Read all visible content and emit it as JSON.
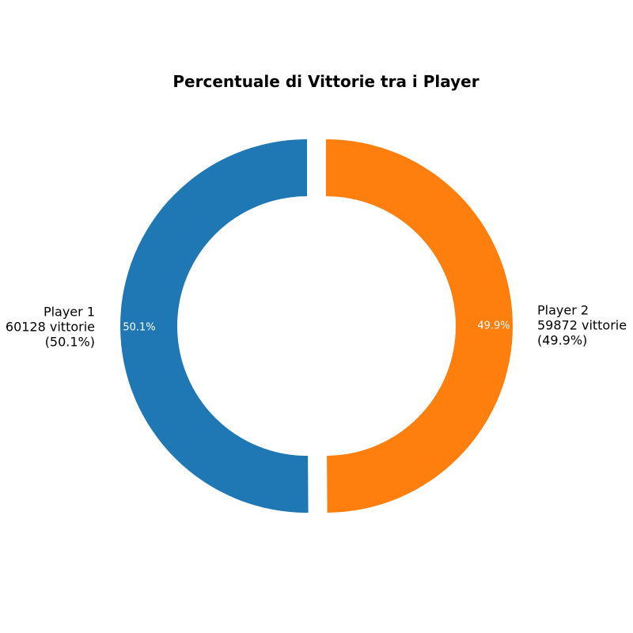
{
  "chart_data": {
    "type": "pie",
    "variant": "donut",
    "title": "Percentuale di Vittorie tra i Player",
    "slices": [
      {
        "name": "Player 1",
        "value": 60128,
        "percent_label": "50.1%",
        "label_lines": [
          "Player 1",
          "60128 vittorie",
          "(50.1%)"
        ],
        "color": "#1f77b4"
      },
      {
        "name": "Player 2",
        "value": 59872,
        "percent_label": "49.9%",
        "label_lines": [
          "Player 2",
          "59872 vittorie",
          "(49.9%)"
        ],
        "color": "#ff7f0e"
      }
    ],
    "start_angle": "top",
    "direction": "counterclockwise",
    "legend": "none"
  }
}
